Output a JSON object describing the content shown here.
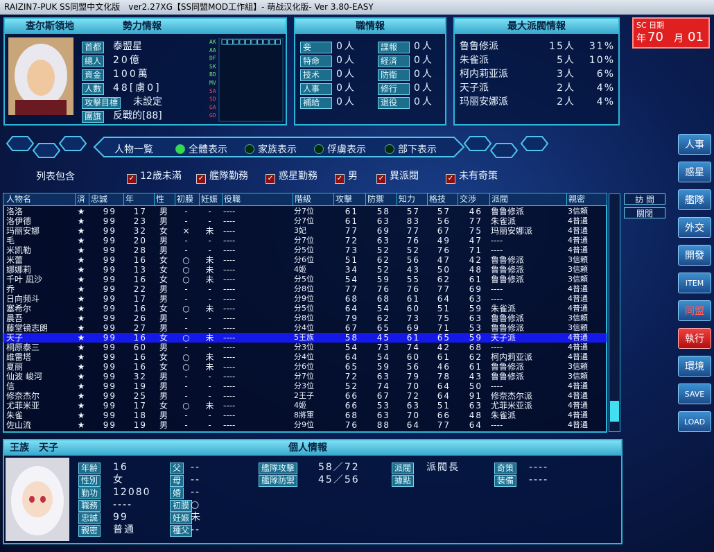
{
  "window": {
    "title": "RAIZIN7-PUK SS同盟中文化版　ver2.27XG【SS同盟MOD工作組】- 萌战汉化版- Ver 3.80-EASY"
  },
  "faction": {
    "name": "查尔斯領地",
    "title": "勢力情報",
    "fields": [
      [
        "首都",
        "泰盟星"
      ],
      [
        "總人",
        "20億"
      ],
      [
        "資金",
        "100萬"
      ],
      [
        "人數",
        "48[虜0]"
      ],
      [
        "攻擊目標",
        "未設定"
      ],
      [
        "團旗",
        "反戰的[88]"
      ]
    ],
    "stat_labels": [
      "AK",
      "AA",
      "DF",
      "SK",
      "BD",
      "MV",
      "SA",
      "SD",
      "GA",
      "GD"
    ]
  },
  "jobs": {
    "title": "職情報",
    "items": [
      [
        "妾",
        "0人"
      ],
      [
        "諜報",
        "0人"
      ],
      [
        "特命",
        "0人"
      ],
      [
        "経済",
        "0人"
      ],
      [
        "技术",
        "0人"
      ],
      [
        "防衛",
        "0人"
      ],
      [
        "人事",
        "0人"
      ],
      [
        "修行",
        "0人"
      ],
      [
        "補給",
        "0人"
      ],
      [
        "退役",
        "0人"
      ]
    ]
  },
  "factions": {
    "title": "最大派閥情報",
    "rows": [
      [
        "鲁鲁修派",
        "15人",
        "31%"
      ],
      [
        "朱雀派",
        "5人",
        "10%"
      ],
      [
        "柯内莉亚派",
        "3人",
        "6%"
      ],
      [
        "天子派",
        "2人",
        "4%"
      ],
      [
        "玛丽安娜派",
        "2人",
        "4%"
      ]
    ]
  },
  "date": {
    "label": "SC 日期",
    "year_label": "年",
    "year": "70",
    "month_label": "月",
    "month": "01"
  },
  "tabs": {
    "title": "人物一覧",
    "items": [
      "全體表示",
      "家族表示",
      "俘虜表示",
      "部下表示"
    ]
  },
  "filter": {
    "label": "列表包含",
    "items": [
      "12歳未滿",
      "艦隊勤務",
      "惑星勤務",
      "男",
      "異派閥",
      "未有奇策"
    ]
  },
  "table": {
    "headers": [
      "人物名",
      "済",
      "忠誠",
      "年",
      "性",
      "初膜",
      "妊娠",
      "役職",
      "階級",
      "攻擊",
      "防禦",
      "知力",
      "格技",
      "交渉",
      "派閥",
      "親密"
    ],
    "selected": 13,
    "rows": [
      [
        "洛洛",
        "★",
        "99",
        "17",
        "男",
        "-",
        "-",
        "----",
        "分7位",
        "61",
        "58",
        "57",
        "57",
        "46",
        "鲁鲁修派",
        "3信頼"
      ],
      [
        "洛伊德",
        "★",
        "99",
        "23",
        "男",
        "-",
        "-",
        "----",
        "分7位",
        "61",
        "63",
        "83",
        "56",
        "77",
        "朱雀派",
        "4普通"
      ],
      [
        "玛丽安娜",
        "★",
        "99",
        "32",
        "女",
        "×",
        "未",
        "----",
        "3妃",
        "77",
        "69",
        "77",
        "67",
        "75",
        "玛丽安娜派",
        "4普通"
      ],
      [
        "毛",
        "★",
        "99",
        "20",
        "男",
        "-",
        "-",
        "----",
        "分7位",
        "72",
        "63",
        "76",
        "49",
        "47",
        "----",
        "4普通"
      ],
      [
        "米凯勒",
        "★",
        "99",
        "28",
        "男",
        "-",
        "-",
        "----",
        "分5位",
        "73",
        "52",
        "52",
        "76",
        "71",
        "----",
        "4普通"
      ],
      [
        "米蕾",
        "★",
        "99",
        "16",
        "女",
        "○",
        "未",
        "----",
        "分6位",
        "51",
        "62",
        "56",
        "47",
        "42",
        "鲁鲁修派",
        "3信頼"
      ],
      [
        "娜娜莉",
        "★",
        "99",
        "13",
        "女",
        "○",
        "未",
        "----",
        "4姬",
        "34",
        "52",
        "43",
        "50",
        "48",
        "鲁鲁修派",
        "3信頼"
      ],
      [
        "千叶 凪沙",
        "★",
        "99",
        "16",
        "女",
        "○",
        "未",
        "----",
        "分5位",
        "54",
        "59",
        "55",
        "62",
        "61",
        "鲁鲁修派",
        "3信頼"
      ],
      [
        "乔",
        "★",
        "99",
        "22",
        "男",
        "-",
        "-",
        "----",
        "分8位",
        "77",
        "76",
        "76",
        "77",
        "69",
        "----",
        "4普通"
      ],
      [
        "日向频斗",
        "★",
        "99",
        "17",
        "男",
        "-",
        "-",
        "----",
        "分9位",
        "68",
        "68",
        "61",
        "64",
        "63",
        "----",
        "4普通"
      ],
      [
        "塞希尔",
        "★",
        "99",
        "16",
        "女",
        "○",
        "未",
        "----",
        "分5位",
        "64",
        "54",
        "60",
        "51",
        "59",
        "朱雀派",
        "4普通"
      ],
      [
        "晨吾",
        "★",
        "99",
        "26",
        "男",
        "-",
        "-",
        "----",
        "分8位",
        "79",
        "62",
        "73",
        "75",
        "63",
        "鲁鲁修派",
        "3信頼"
      ],
      [
        "藤堂镜志朗",
        "★",
        "99",
        "27",
        "男",
        "-",
        "-",
        "----",
        "分4位",
        "67",
        "65",
        "69",
        "71",
        "53",
        "鲁鲁修派",
        "3信頼"
      ],
      [
        "天子",
        "★",
        "99",
        "16",
        "女",
        "○",
        "未",
        "----",
        "5王族",
        "58",
        "45",
        "61",
        "65",
        "59",
        "天子派",
        "4普通"
      ],
      [
        "桐原泰三",
        "★",
        "99",
        "60",
        "男",
        "-",
        "-",
        "----",
        "分3位",
        "54",
        "73",
        "74",
        "42",
        "68",
        "----",
        "4普通"
      ],
      [
        "维雷塔",
        "★",
        "99",
        "16",
        "女",
        "○",
        "未",
        "----",
        "分4位",
        "64",
        "54",
        "60",
        "61",
        "62",
        "柯内莉亚派",
        "4普通"
      ],
      [
        "夏丽",
        "★",
        "99",
        "16",
        "女",
        "○",
        "未",
        "----",
        "分6位",
        "65",
        "59",
        "56",
        "46",
        "61",
        "鲁鲁修派",
        "3信頼"
      ],
      [
        "仙波 峻河",
        "★",
        "99",
        "32",
        "男",
        "-",
        "-",
        "----",
        "分7位",
        "72",
        "63",
        "79",
        "78",
        "43",
        "鲁鲁修派",
        "3信頼"
      ],
      [
        "信",
        "★",
        "99",
        "19",
        "男",
        "-",
        "-",
        "----",
        "分3位",
        "52",
        "74",
        "70",
        "64",
        "50",
        "----",
        "4普通"
      ],
      [
        "修奈杰尔",
        "★",
        "99",
        "25",
        "男",
        "-",
        "-",
        "----",
        "2王子",
        "66",
        "67",
        "72",
        "64",
        "91",
        "修奈杰尔派",
        "4普通"
      ],
      [
        "尤菲米亚",
        "★",
        "99",
        "17",
        "女",
        "○",
        "未",
        "----",
        "4姬",
        "66",
        "53",
        "63",
        "51",
        "63",
        "尤菲米亚派",
        "4普通"
      ],
      [
        "朱雀",
        "★",
        "99",
        "18",
        "男",
        "-",
        "-",
        "----",
        "8將軍",
        "68",
        "63",
        "70",
        "66",
        "48",
        "朱雀派",
        "4普通"
      ],
      [
        "佐山流",
        "★",
        "99",
        "19",
        "男",
        "-",
        "-",
        "----",
        "分9位",
        "76",
        "88",
        "64",
        "77",
        "64",
        "----",
        "4普通"
      ]
    ]
  },
  "side_buttons": [
    "人事",
    "惑星",
    "艦隊",
    "外交",
    "開發",
    "ITEM",
    "同盟",
    "執行",
    "環境",
    "SAVE",
    "LOAD"
  ],
  "mini_buttons": [
    "訪 問",
    "關閉"
  ],
  "profile": {
    "name": "王族　天子",
    "title": "個人情報",
    "columns": [
      [
        [
          "年齢",
          "16"
        ],
        [
          "性別",
          "女"
        ],
        [
          "勤功",
          "12080"
        ],
        [
          "職務",
          "----"
        ],
        [
          "忠誠",
          "99"
        ],
        [
          "親密",
          "普通"
        ]
      ],
      [
        [
          "父",
          "--"
        ],
        [
          "母",
          "--"
        ],
        [
          "婚",
          "--"
        ],
        [
          "初膜",
          "○"
        ],
        [
          "妊娠",
          "未"
        ],
        [
          "種父",
          "--"
        ]
      ],
      [
        [
          "艦隊攻擊",
          "58／72"
        ],
        [
          "艦隊防禦",
          "45／56"
        ]
      ],
      [
        [
          "派閥",
          "派閥長"
        ],
        [
          "據點"
        ]
      ],
      [
        [
          "奇策",
          "----"
        ],
        [
          "装備",
          "----"
        ]
      ]
    ]
  }
}
